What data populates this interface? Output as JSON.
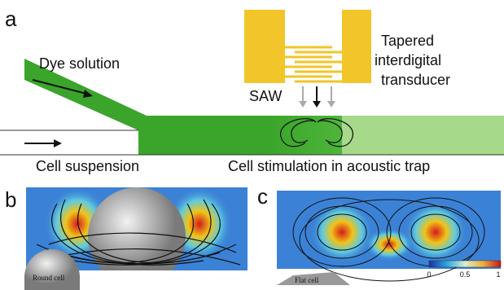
{
  "panels": [
    {
      "label": "a",
      "dye": "Dye  solution",
      "cells": "Cell suspension",
      "saw": "SAW",
      "transducer": [
        "Tapered",
        "interdigital",
        "transducer"
      ],
      "caption": "Cell stimulation in acoustic trap"
    },
    {
      "label": "b",
      "cell": "Round cell"
    },
    {
      "label": "c",
      "cell": "Flat cell",
      "colorbar": [
        "0",
        "0.5",
        "1"
      ]
    }
  ]
}
